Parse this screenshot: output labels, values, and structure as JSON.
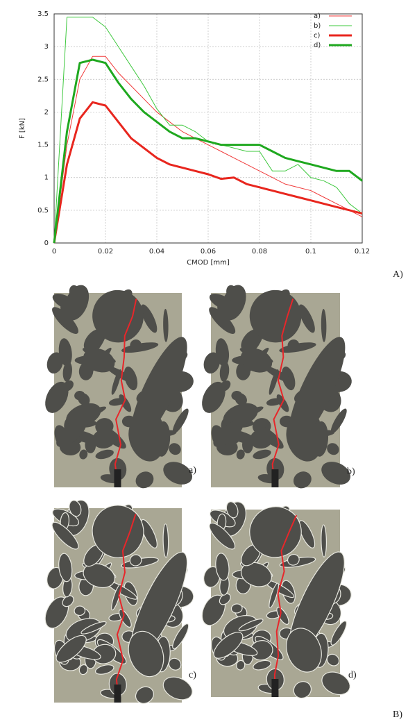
{
  "chart_data": {
    "type": "line",
    "ylabel": "F [kN]",
    "xlabel": "CMOD [mm]",
    "x": [
      0,
      0.005,
      0.01,
      0.015,
      0.02,
      0.025,
      0.03,
      0.035,
      0.04,
      0.045,
      0.05,
      0.055,
      0.06,
      0.065,
      0.07,
      0.075,
      0.08,
      0.085,
      0.09,
      0.095,
      0.1,
      0.105,
      0.11,
      0.115,
      0.12
    ],
    "series": [
      {
        "name": "a)",
        "color": "#f03a3a",
        "line_width": 1,
        "values": [
          0,
          1.5,
          2.5,
          2.85,
          2.85,
          2.6,
          2.4,
          2.2,
          2.0,
          1.85,
          1.7,
          1.6,
          1.5,
          1.4,
          1.3,
          1.2,
          1.1,
          1.0,
          0.9,
          0.85,
          0.8,
          0.7,
          0.6,
          0.5,
          0.4
        ]
      },
      {
        "name": "b)",
        "color": "#3ec83e",
        "line_width": 1,
        "values": [
          0,
          3.45,
          3.45,
          3.45,
          3.3,
          3.0,
          2.7,
          2.4,
          2.05,
          1.8,
          1.8,
          1.7,
          1.55,
          1.5,
          1.45,
          1.4,
          1.4,
          1.1,
          1.1,
          1.2,
          1.0,
          0.95,
          0.85,
          0.6,
          0.45
        ]
      },
      {
        "name": "c)",
        "color": "#e8261e",
        "line_width": 3,
        "values": [
          0,
          1.2,
          1.9,
          2.15,
          2.1,
          1.85,
          1.6,
          1.45,
          1.3,
          1.2,
          1.15,
          1.1,
          1.05,
          0.98,
          1.0,
          0.9,
          0.85,
          0.8,
          0.75,
          0.7,
          0.65,
          0.6,
          0.55,
          0.5,
          0.45
        ]
      },
      {
        "name": "d)",
        "color": "#1fa81f",
        "line_width": 3,
        "values": [
          0,
          1.7,
          2.75,
          2.8,
          2.75,
          2.45,
          2.2,
          2.0,
          1.85,
          1.7,
          1.6,
          1.6,
          1.55,
          1.5,
          1.5,
          1.5,
          1.5,
          1.4,
          1.3,
          1.25,
          1.2,
          1.15,
          1.1,
          1.1,
          0.95
        ]
      }
    ],
    "xlim": [
      0,
      0.12
    ],
    "xticks": [
      0,
      0.02,
      0.04,
      0.06,
      0.08,
      0.1,
      0.12
    ],
    "ylim": [
      0,
      3.5
    ],
    "yticks": [
      0,
      0.5,
      1,
      1.5,
      2,
      2.5,
      3,
      3.5
    ],
    "grid": true,
    "legend": "top-right"
  },
  "figure_labels": [
    "A)",
    "B)"
  ],
  "panels": [
    {
      "label": "a)"
    },
    {
      "label": "b)"
    },
    {
      "label": "c)"
    },
    {
      "label": "d)"
    }
  ]
}
